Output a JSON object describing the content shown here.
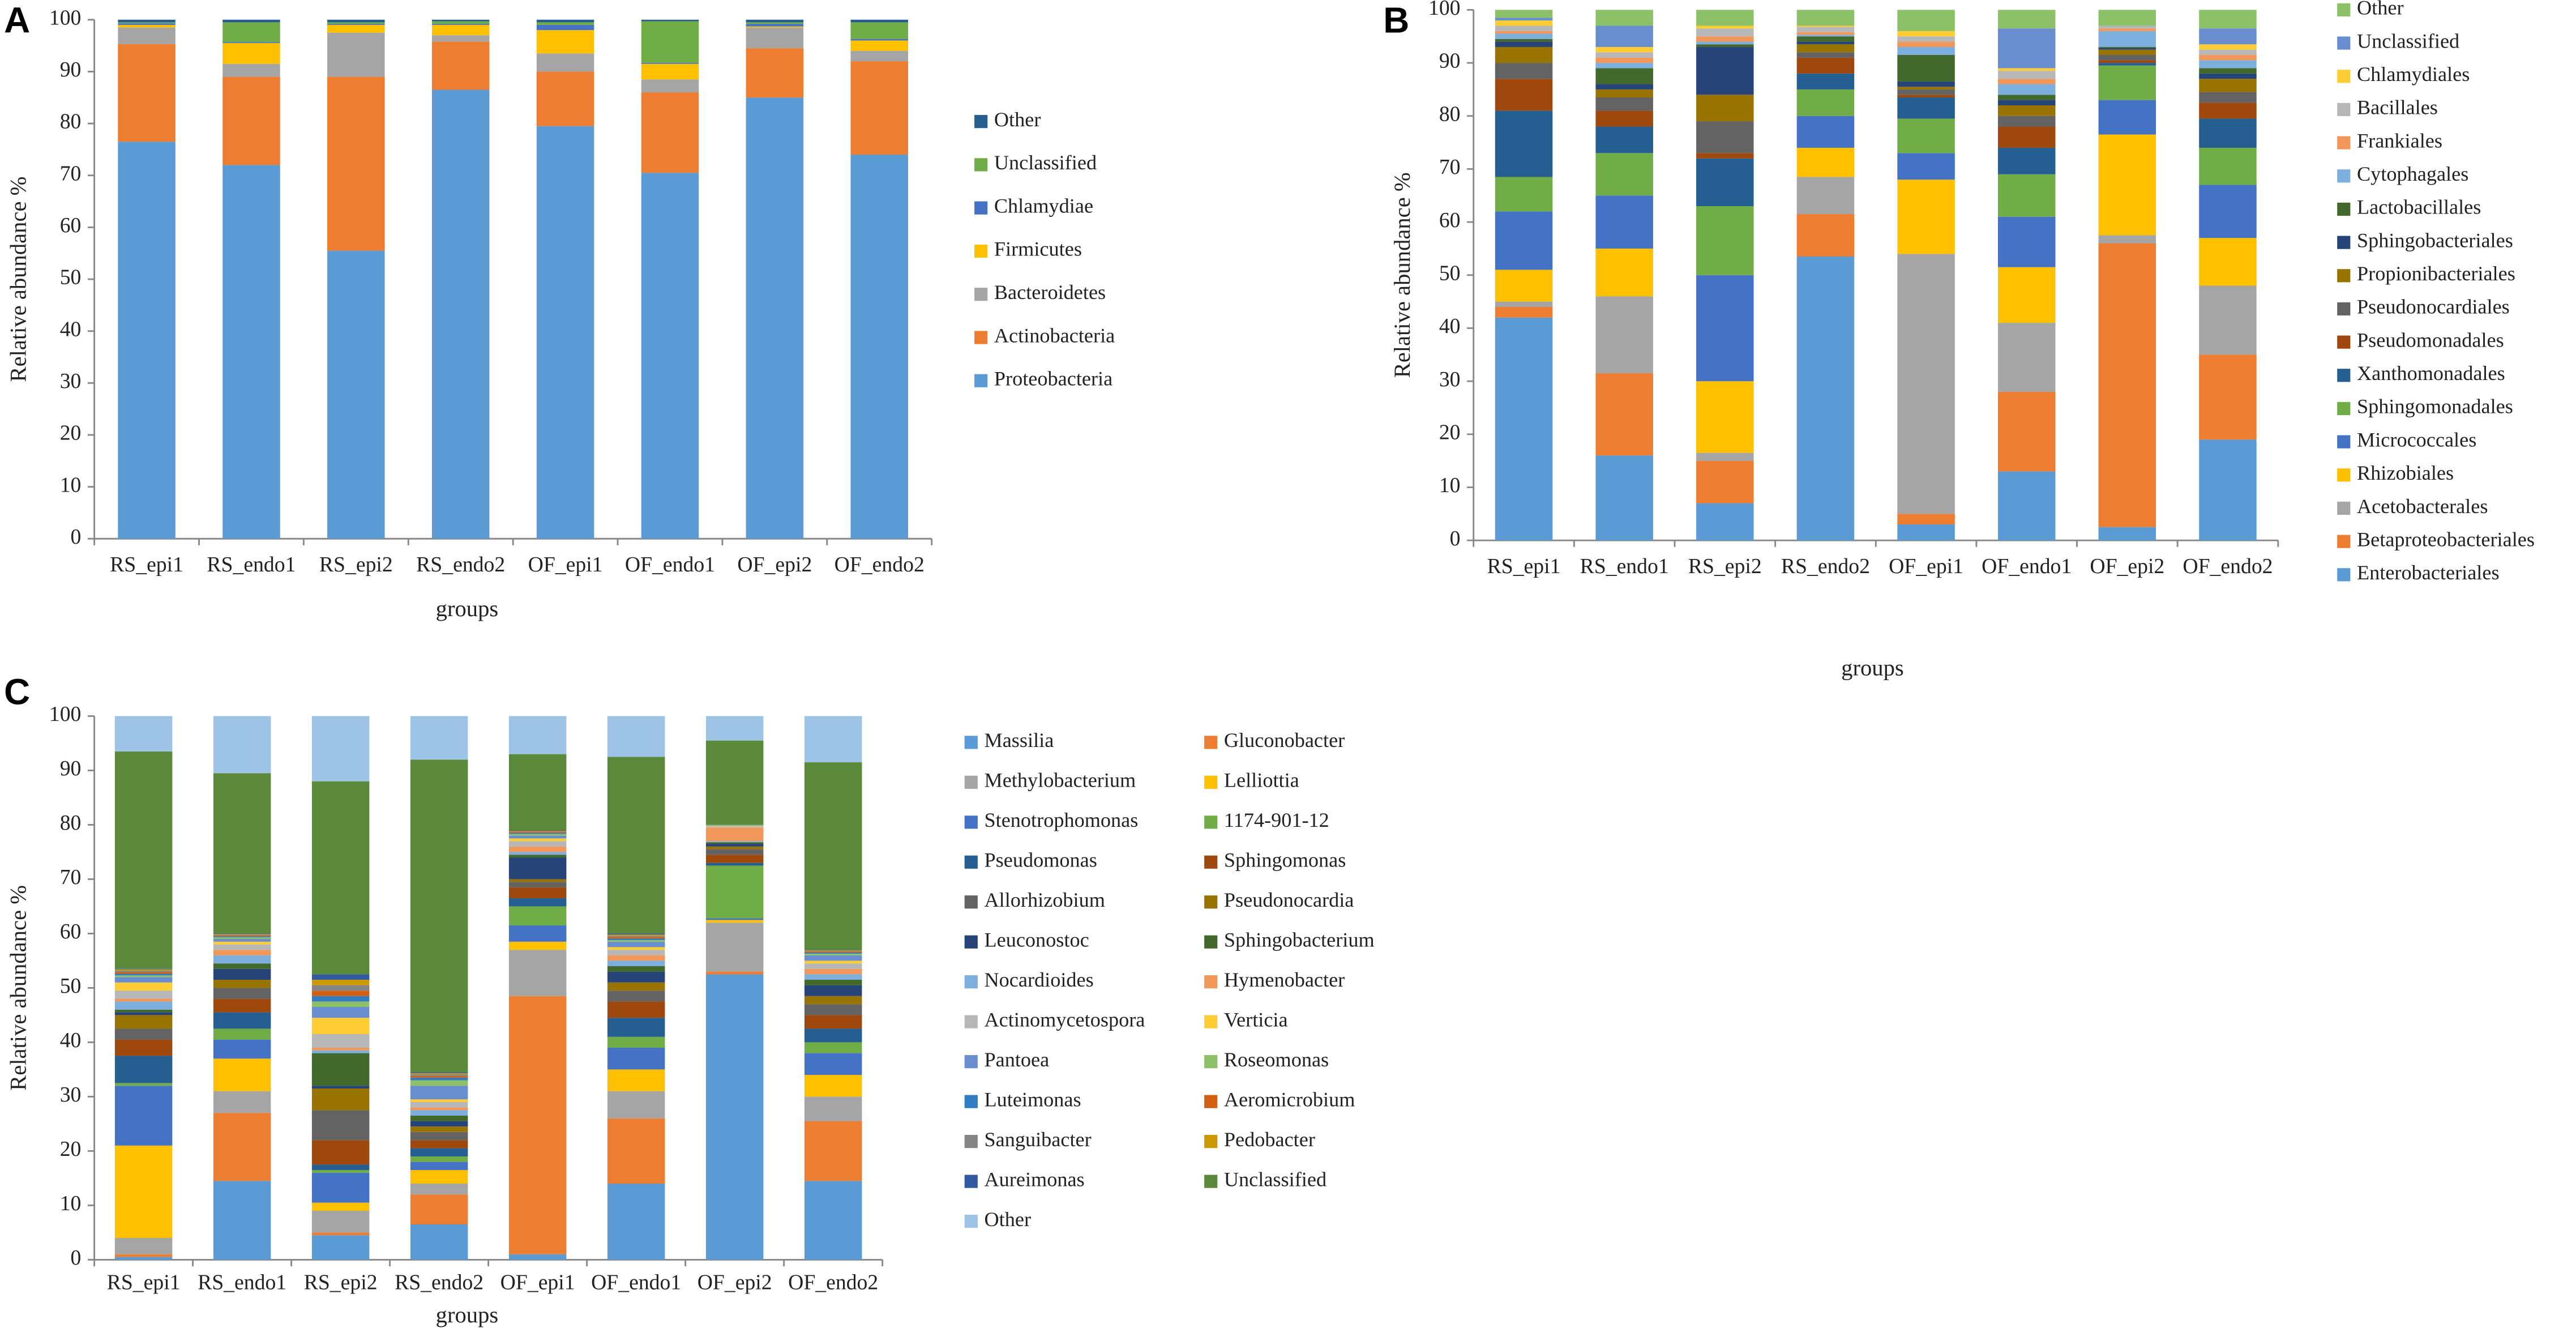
{
  "chart_data": [
    {
      "panel": "A",
      "type": "bar",
      "stacked": true,
      "ylabel": "Relative abundance %",
      "xlabel": "groups",
      "categories": [
        "RS_epi1",
        "RS_endo1",
        "RS_epi2",
        "RS_endo2",
        "OF_epi1",
        "OF_endo1",
        "OF_epi2",
        "OF_endo2"
      ],
      "ylim": [
        0,
        100
      ],
      "yticks": [
        0,
        10,
        20,
        30,
        40,
        50,
        60,
        70,
        80,
        90,
        100
      ],
      "series": [
        {
          "name": "Proteobacteria",
          "color": "#5b9bd5",
          "values": [
            76.5,
            72,
            55.5,
            86.5,
            79.5,
            70.5,
            85,
            74
          ]
        },
        {
          "name": "Actinobacteria",
          "color": "#ed7d31",
          "values": [
            18.8,
            17,
            33.5,
            9.3,
            10.5,
            15.5,
            9.5,
            18
          ]
        },
        {
          "name": "Bacteroidetes",
          "color": "#a5a5a5",
          "values": [
            3.2,
            2.5,
            8.5,
            1.2,
            3.5,
            2.5,
            4,
            2
          ]
        },
        {
          "name": "Firmicutes",
          "color": "#ffc000",
          "values": [
            0.5,
            4,
            1.5,
            2,
            4.5,
            3,
            0.2,
            2
          ]
        },
        {
          "name": "Chlamydiae",
          "color": "#4472c4",
          "values": [
            0.3,
            0.2,
            0.2,
            0.2,
            1,
            0.2,
            0.5,
            0.3
          ]
        },
        {
          "name": "Unclassified",
          "color": "#70ad47",
          "values": [
            0.2,
            3.8,
            0.3,
            0.5,
            0.5,
            8,
            0.3,
            3.2
          ]
        },
        {
          "name": "Other",
          "color": "#255e91",
          "values": [
            0.5,
            0.5,
            0.5,
            0.3,
            0.5,
            0.3,
            0.5,
            0.5
          ]
        }
      ]
    },
    {
      "panel": "B",
      "type": "bar",
      "stacked": true,
      "ylabel": "Relative abundance %",
      "xlabel": "groups",
      "categories": [
        "RS_epi1",
        "RS_endo1",
        "RS_epi2",
        "RS_endo2",
        "OF_epi1",
        "OF_endo1",
        "OF_epi2",
        "OF_endo2"
      ],
      "ylim": [
        0,
        100
      ],
      "yticks": [
        0,
        10,
        20,
        30,
        40,
        50,
        60,
        70,
        80,
        90,
        100
      ],
      "series": [
        {
          "name": "Enterobacteriales",
          "color": "#5b9bd5",
          "values": [
            42,
            16,
            7,
            53.5,
            3,
            13,
            2.5,
            19
          ]
        },
        {
          "name": "Betaproteobacteriales",
          "color": "#ed7d31",
          "values": [
            2,
            15.5,
            8,
            8,
            2,
            15,
            53.5,
            16
          ]
        },
        {
          "name": "Acetobacterales",
          "color": "#a5a5a5",
          "values": [
            1,
            14.5,
            1.5,
            7,
            49,
            13,
            1.5,
            13
          ]
        },
        {
          "name": "Rhizobiales",
          "color": "#ffc000",
          "values": [
            6,
            9,
            13.5,
            5.5,
            14,
            10.5,
            19,
            9
          ]
        },
        {
          "name": "Micrococcales",
          "color": "#4472c4",
          "values": [
            11,
            10,
            20,
            6,
            5,
            9.5,
            6.5,
            10
          ]
        },
        {
          "name": "Sphingomonadales",
          "color": "#70ad47",
          "values": [
            6.5,
            8,
            13,
            5,
            6.5,
            8,
            6.5,
            7
          ]
        },
        {
          "name": "Xanthomonadales",
          "color": "#255e91",
          "values": [
            12.5,
            5,
            9,
            3,
            4,
            5,
            0.5,
            5.5
          ]
        },
        {
          "name": "Pseudomonadales",
          "color": "#9e480e",
          "values": [
            6,
            3,
            1,
            3,
            0.5,
            4,
            0.5,
            3
          ]
        },
        {
          "name": "Pseudonocardiales",
          "color": "#636363",
          "values": [
            3,
            2.5,
            6,
            1,
            1,
            2,
            1,
            2
          ]
        },
        {
          "name": "Propionibacteriales",
          "color": "#997300",
          "values": [
            3,
            1.5,
            5,
            1.5,
            0.5,
            2,
            1,
            2.5
          ]
        },
        {
          "name": "Sphingobacteriales",
          "color": "#264478",
          "values": [
            1,
            1,
            9,
            0.5,
            1,
            1,
            0.3,
            1
          ]
        },
        {
          "name": "Lactobacillales",
          "color": "#43682b",
          "values": [
            0.5,
            3,
            0.5,
            1,
            5,
            1,
            0.2,
            1
          ]
        },
        {
          "name": "Cytophagales",
          "color": "#7cafdd",
          "values": [
            1,
            1,
            0.5,
            0.3,
            1.5,
            2,
            3,
            1.5
          ]
        },
        {
          "name": "Frankiales",
          "color": "#f1975a",
          "values": [
            0.5,
            1,
            1,
            0.5,
            1,
            1,
            0.5,
            1
          ]
        },
        {
          "name": "Bacillales",
          "color": "#b7b7b7",
          "values": [
            1,
            1,
            1.5,
            1,
            1,
            1.5,
            0.5,
            1
          ]
        },
        {
          "name": "Chlamydiales",
          "color": "#ffcd33",
          "values": [
            1,
            1,
            0.5,
            0.2,
            1,
            0.5,
            0,
            1
          ]
        },
        {
          "name": "Unclassified",
          "color": "#698ed0",
          "values": [
            0.5,
            4,
            0,
            0,
            0,
            7.5,
            0,
            3
          ]
        },
        {
          "name": "Other",
          "color": "#8cc168",
          "values": [
            1.5,
            3,
            3,
            3,
            4,
            3.5,
            3,
            3.5
          ]
        }
      ]
    },
    {
      "panel": "C",
      "type": "bar",
      "stacked": true,
      "ylabel": "Relative abundance %",
      "xlabel": "groups",
      "categories": [
        "RS_epi1",
        "RS_endo1",
        "RS_epi2",
        "RS_endo2",
        "OF_epi1",
        "OF_endo1",
        "OF_epi2",
        "OF_endo2"
      ],
      "ylim": [
        0,
        100
      ],
      "yticks": [
        0,
        10,
        20,
        30,
        40,
        50,
        60,
        70,
        80,
        90,
        100
      ],
      "series": [
        {
          "name": "Massilia",
          "color": "#5b9bd5",
          "values": [
            0.5,
            14.5,
            4.5,
            6.5,
            1,
            14,
            52.5,
            14.5
          ]
        },
        {
          "name": "Gluconobacter",
          "color": "#ed7d31",
          "values": [
            0.5,
            12.5,
            0.5,
            5.5,
            47.5,
            12,
            0.5,
            11
          ]
        },
        {
          "name": "Methylobacterium",
          "color": "#a5a5a5",
          "values": [
            3,
            4,
            4,
            2,
            8.5,
            5,
            9,
            4.5
          ]
        },
        {
          "name": "Lelliottia",
          "color": "#ffc000",
          "values": [
            17,
            6,
            1.5,
            2.5,
            1.5,
            4,
            0.5,
            4
          ]
        },
        {
          "name": "Stenotrophomonas",
          "color": "#4472c4",
          "values": [
            11,
            3.5,
            5.5,
            1.5,
            3,
            4,
            0.3,
            4
          ]
        },
        {
          "name": "1174-901-12",
          "color": "#70ad47",
          "values": [
            0.5,
            2,
            0.5,
            1,
            3.5,
            2,
            9.7,
            2
          ]
        },
        {
          "name": "Pseudomonas",
          "color": "#255e91",
          "values": [
            5,
            3,
            1,
            1.5,
            1.5,
            3.5,
            0.5,
            2.5
          ]
        },
        {
          "name": "Sphingomonas",
          "color": "#9e480e",
          "values": [
            3,
            2.5,
            4.5,
            1.5,
            2,
            3,
            1.5,
            2.5
          ]
        },
        {
          "name": "Allorhizobium",
          "color": "#636363",
          "values": [
            2,
            2,
            5.5,
            1.5,
            1,
            2,
            1,
            2
          ]
        },
        {
          "name": "Pseudonocardia",
          "color": "#997300",
          "values": [
            2.5,
            1.5,
            4,
            1,
            0.5,
            1.5,
            0.5,
            1.5
          ]
        },
        {
          "name": "Leuconostoc",
          "color": "#264478",
          "values": [
            0.5,
            2,
            0.5,
            1,
            4,
            2,
            0.5,
            2
          ]
        },
        {
          "name": "Sphingobacterium",
          "color": "#43682b",
          "values": [
            0.5,
            1,
            6,
            1,
            0.5,
            1,
            0.3,
            1
          ]
        },
        {
          "name": "Nocardioides",
          "color": "#7cafdd",
          "values": [
            1.5,
            1.5,
            0.5,
            1,
            0.5,
            1,
            0.2,
            1
          ]
        },
        {
          "name": "Hymenobacter",
          "color": "#f1975a",
          "values": [
            0.5,
            1,
            0.5,
            0.5,
            1,
            1,
            2.5,
            1
          ]
        },
        {
          "name": "Actinomycetospora",
          "color": "#b7b7b7",
          "values": [
            1.5,
            1,
            2.5,
            1,
            1,
            1,
            0.2,
            1
          ]
        },
        {
          "name": "Verticia",
          "color": "#ffcd33",
          "values": [
            1.5,
            0.5,
            3,
            0.5,
            0.5,
            0.5,
            0.1,
            0.5
          ]
        },
        {
          "name": "Pantoea",
          "color": "#698ed0",
          "values": [
            1,
            0.5,
            2,
            2.5,
            0.5,
            1,
            0.1,
            1
          ]
        },
        {
          "name": "Roseomonas",
          "color": "#8cc168",
          "values": [
            0.3,
            0.3,
            1,
            1,
            0.3,
            0.3,
            0.1,
            0.3
          ]
        },
        {
          "name": "Luteimonas",
          "color": "#327dc2",
          "values": [
            0.3,
            0.2,
            1,
            0.5,
            0.2,
            0.3,
            0,
            0.2
          ]
        },
        {
          "name": "Aeromicrobium",
          "color": "#d26012",
          "values": [
            0.3,
            0.2,
            1,
            0.3,
            0.2,
            0.3,
            0,
            0.2
          ]
        },
        {
          "name": "Sanguibacter",
          "color": "#848484",
          "values": [
            0.3,
            0.1,
            1,
            0.3,
            0.1,
            0.2,
            0,
            0.1
          ]
        },
        {
          "name": "Pedobacter",
          "color": "#cc9a00",
          "values": [
            0.2,
            0.1,
            1,
            0.2,
            0.1,
            0.2,
            0,
            0.1
          ]
        },
        {
          "name": "Aureimonas",
          "color": "#335aa1",
          "values": [
            0.1,
            0.1,
            1,
            0.2,
            0.1,
            0.2,
            0,
            0.1
          ]
        },
        {
          "name": "Unclassified",
          "color": "#5a8a39",
          "values": [
            40,
            29.5,
            35.5,
            57.5,
            14,
            32.5,
            15.5,
            34.5
          ]
        },
        {
          "name": "Other",
          "color": "#9dc3e6",
          "values": [
            6.5,
            10.5,
            12,
            8,
            7,
            7.5,
            4.5,
            8.5
          ]
        }
      ]
    }
  ]
}
